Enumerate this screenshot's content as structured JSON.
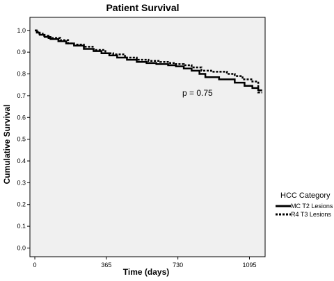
{
  "chart_data": {
    "type": "line",
    "title": "Patient Survival",
    "xlabel": "Time (days)",
    "ylabel": "Cumulative Survival",
    "xlim": [
      -25,
      1175
    ],
    "ylim": [
      -0.04,
      1.06
    ],
    "xticks": [
      0,
      365,
      730,
      1095
    ],
    "yticks": [
      0.0,
      0.1,
      0.2,
      0.3,
      0.4,
      0.5,
      0.6,
      0.7,
      0.8,
      0.9,
      1.0
    ],
    "annotation": {
      "text": "p = 0.75",
      "x": 870,
      "y": 0.75
    },
    "legend": {
      "title": "HCC Category",
      "position": "right"
    },
    "series": [
      {
        "name": "MC T2 Lesions",
        "style": "solid",
        "color": "#000000",
        "points": [
          [
            0,
            1.0
          ],
          [
            10,
            0.99
          ],
          [
            25,
            0.98
          ],
          [
            50,
            0.97
          ],
          [
            80,
            0.96
          ],
          [
            120,
            0.95
          ],
          [
            160,
            0.94
          ],
          [
            200,
            0.93
          ],
          [
            250,
            0.915
          ],
          [
            300,
            0.905
          ],
          [
            340,
            0.895
          ],
          [
            380,
            0.885
          ],
          [
            420,
            0.875
          ],
          [
            470,
            0.865
          ],
          [
            520,
            0.855
          ],
          [
            570,
            0.85
          ],
          [
            620,
            0.845
          ],
          [
            680,
            0.84
          ],
          [
            720,
            0.835
          ],
          [
            760,
            0.825
          ],
          [
            800,
            0.815
          ],
          [
            840,
            0.8
          ],
          [
            870,
            0.785
          ],
          [
            940,
            0.775
          ],
          [
            1020,
            0.76
          ],
          [
            1070,
            0.745
          ],
          [
            1110,
            0.735
          ],
          [
            1140,
            0.725
          ],
          [
            1160,
            0.725
          ]
        ]
      },
      {
        "name": "R4 T3 Lesions",
        "style": "dotted",
        "color": "#000000",
        "points": [
          [
            0,
            1.0
          ],
          [
            15,
            0.985
          ],
          [
            40,
            0.975
          ],
          [
            70,
            0.965
          ],
          [
            130,
            0.955
          ],
          [
            170,
            0.94
          ],
          [
            200,
            0.935
          ],
          [
            250,
            0.925
          ],
          [
            300,
            0.91
          ],
          [
            360,
            0.895
          ],
          [
            400,
            0.89
          ],
          [
            460,
            0.875
          ],
          [
            520,
            0.865
          ],
          [
            580,
            0.86
          ],
          [
            640,
            0.855
          ],
          [
            690,
            0.85
          ],
          [
            720,
            0.845
          ],
          [
            760,
            0.84
          ],
          [
            800,
            0.83
          ],
          [
            850,
            0.815
          ],
          [
            900,
            0.81
          ],
          [
            980,
            0.8
          ],
          [
            1020,
            0.79
          ],
          [
            1060,
            0.775
          ],
          [
            1110,
            0.765
          ],
          [
            1140,
            0.715
          ],
          [
            1160,
            0.715
          ]
        ]
      }
    ]
  }
}
